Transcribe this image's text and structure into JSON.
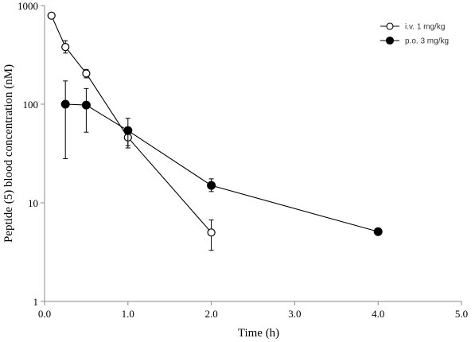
{
  "chart_data": {
    "type": "scatter",
    "xlabel": "Time (h)",
    "ylabel": "Peptide (5) blood concentration (nM)",
    "xlim": [
      0,
      5
    ],
    "ylim": [
      1,
      1000
    ],
    "yscale": "log",
    "grid": false,
    "legend_position": "top-right",
    "x_ticks": [
      "0.0",
      "1.0",
      "2.0",
      "3.0",
      "4.0",
      "5.0"
    ],
    "y_ticks": [
      "1",
      "10",
      "100",
      "1000"
    ],
    "series": [
      {
        "name": "i.v. 1 mg/kg",
        "marker": "open-circle",
        "color": "#000000",
        "points": [
          {
            "x": 0.083,
            "y": 790,
            "err_low": 740,
            "err_high": 840
          },
          {
            "x": 0.25,
            "y": 380,
            "err_low": 330,
            "err_high": 440
          },
          {
            "x": 0.5,
            "y": 205,
            "err_low": 185,
            "err_high": 225
          },
          {
            "x": 1.0,
            "y": 46,
            "err_low": 36,
            "err_high": 57
          },
          {
            "x": 2.0,
            "y": 5,
            "err_low": 3.3,
            "err_high": 6.7
          }
        ]
      },
      {
        "name": "p.o. 3 mg/kg",
        "marker": "filled-circle",
        "color": "#000000",
        "points": [
          {
            "x": 0.25,
            "y": 100,
            "err_low": 28,
            "err_high": 172
          },
          {
            "x": 0.5,
            "y": 98,
            "err_low": 52,
            "err_high": 144
          },
          {
            "x": 1.0,
            "y": 54,
            "err_low": 38,
            "err_high": 72
          },
          {
            "x": 2.0,
            "y": 15,
            "err_low": 13,
            "err_high": 17.5
          },
          {
            "x": 4.0,
            "y": 5.1,
            "err_low": 5.1,
            "err_high": 5.1
          }
        ]
      }
    ]
  }
}
